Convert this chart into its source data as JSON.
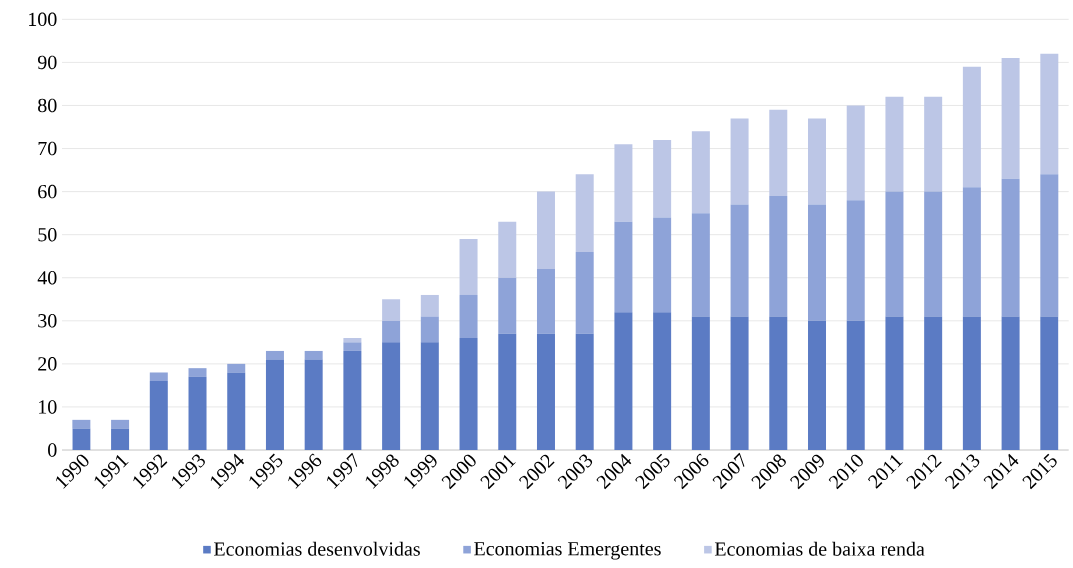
{
  "chart_data": {
    "type": "bar",
    "stacked": true,
    "categories": [
      "1990",
      "1991",
      "1992",
      "1993",
      "1994",
      "1995",
      "1996",
      "1997",
      "1998",
      "1999",
      "2000",
      "2001",
      "2002",
      "2003",
      "2004",
      "2005",
      "2006",
      "2007",
      "2008",
      "2009",
      "2010",
      "2011",
      "2012",
      "2013",
      "2014",
      "2015"
    ],
    "series": [
      {
        "name": "Economias desenvolvidas",
        "color": "#5b7bc4",
        "values": [
          5,
          5,
          16,
          17,
          18,
          21,
          21,
          23,
          25,
          25,
          26,
          27,
          27,
          27,
          32,
          32,
          31,
          31,
          31,
          30,
          30,
          31,
          31,
          31,
          31,
          31
        ]
      },
      {
        "name": "Economias Emergentes",
        "color": "#8ea3d8",
        "values": [
          2,
          2,
          2,
          2,
          2,
          2,
          2,
          2,
          5,
          6,
          10,
          13,
          15,
          19,
          21,
          22,
          24,
          26,
          28,
          27,
          28,
          29,
          29,
          30,
          32,
          33
        ]
      },
      {
        "name": "Economias de baixa renda",
        "color": "#bcc6e6",
        "values": [
          0,
          0,
          0,
          0,
          0,
          0,
          0,
          1,
          5,
          5,
          13,
          13,
          18,
          18,
          18,
          18,
          19,
          20,
          20,
          20,
          22,
          22,
          22,
          28,
          28,
          28
        ]
      }
    ],
    "ylim": [
      0,
      100
    ],
    "yticks": [
      0,
      10,
      20,
      30,
      40,
      50,
      60,
      70,
      80,
      90,
      100
    ],
    "grid": "y",
    "legend": "bottom"
  }
}
